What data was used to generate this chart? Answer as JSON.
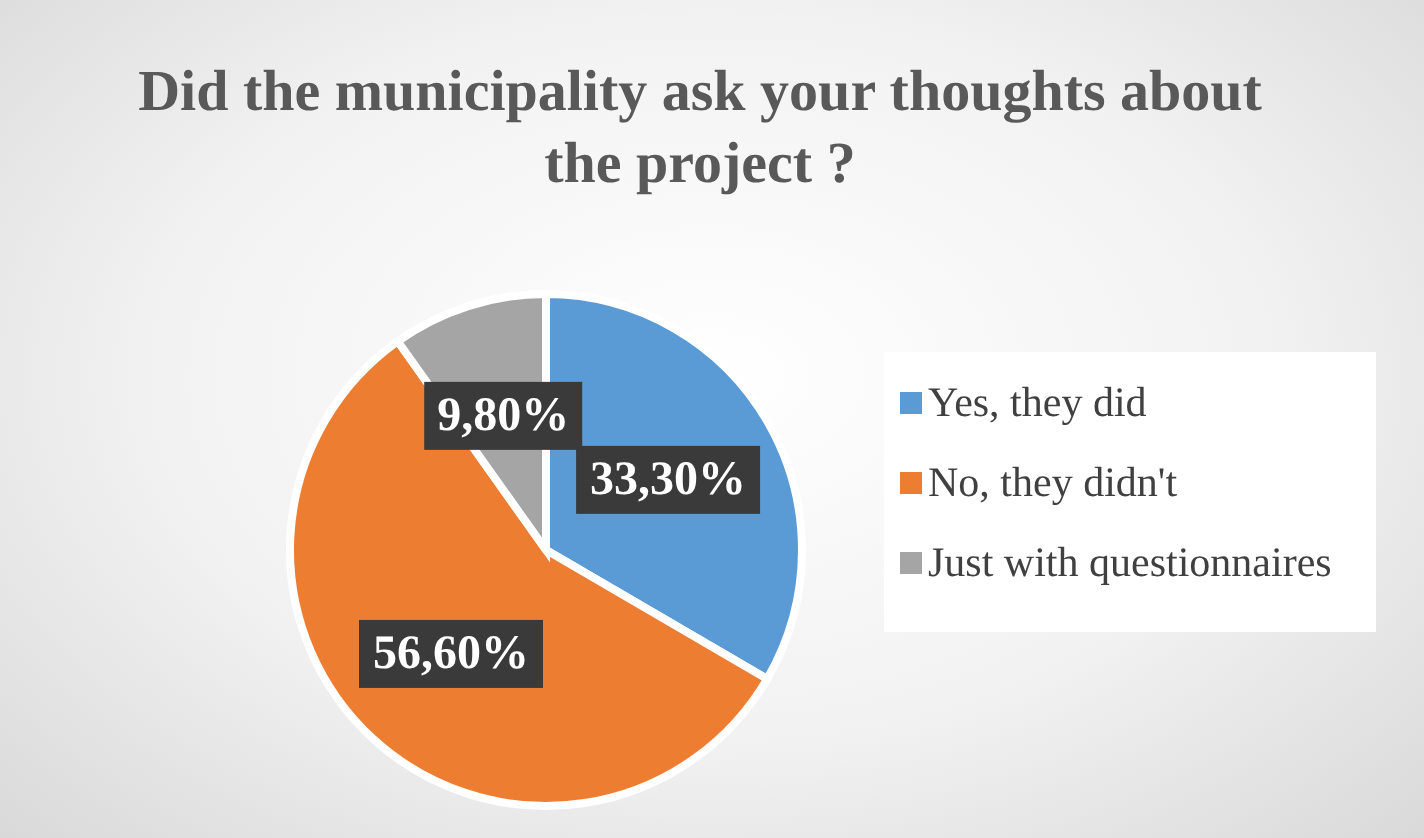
{
  "chart_data": {
    "type": "pie",
    "title": "Did the municipality ask your thoughts about the project ?",
    "categories": [
      "Yes, they did",
      "No, they didn't",
      "Just with questionnaires"
    ],
    "values": [
      33.3,
      56.6,
      9.8
    ],
    "colors": [
      "#5b9bd5",
      "#ed7d31",
      "#a5a5a5"
    ],
    "value_labels": [
      "33,30%",
      "56,60%",
      "9,80%"
    ],
    "legend": "right"
  }
}
